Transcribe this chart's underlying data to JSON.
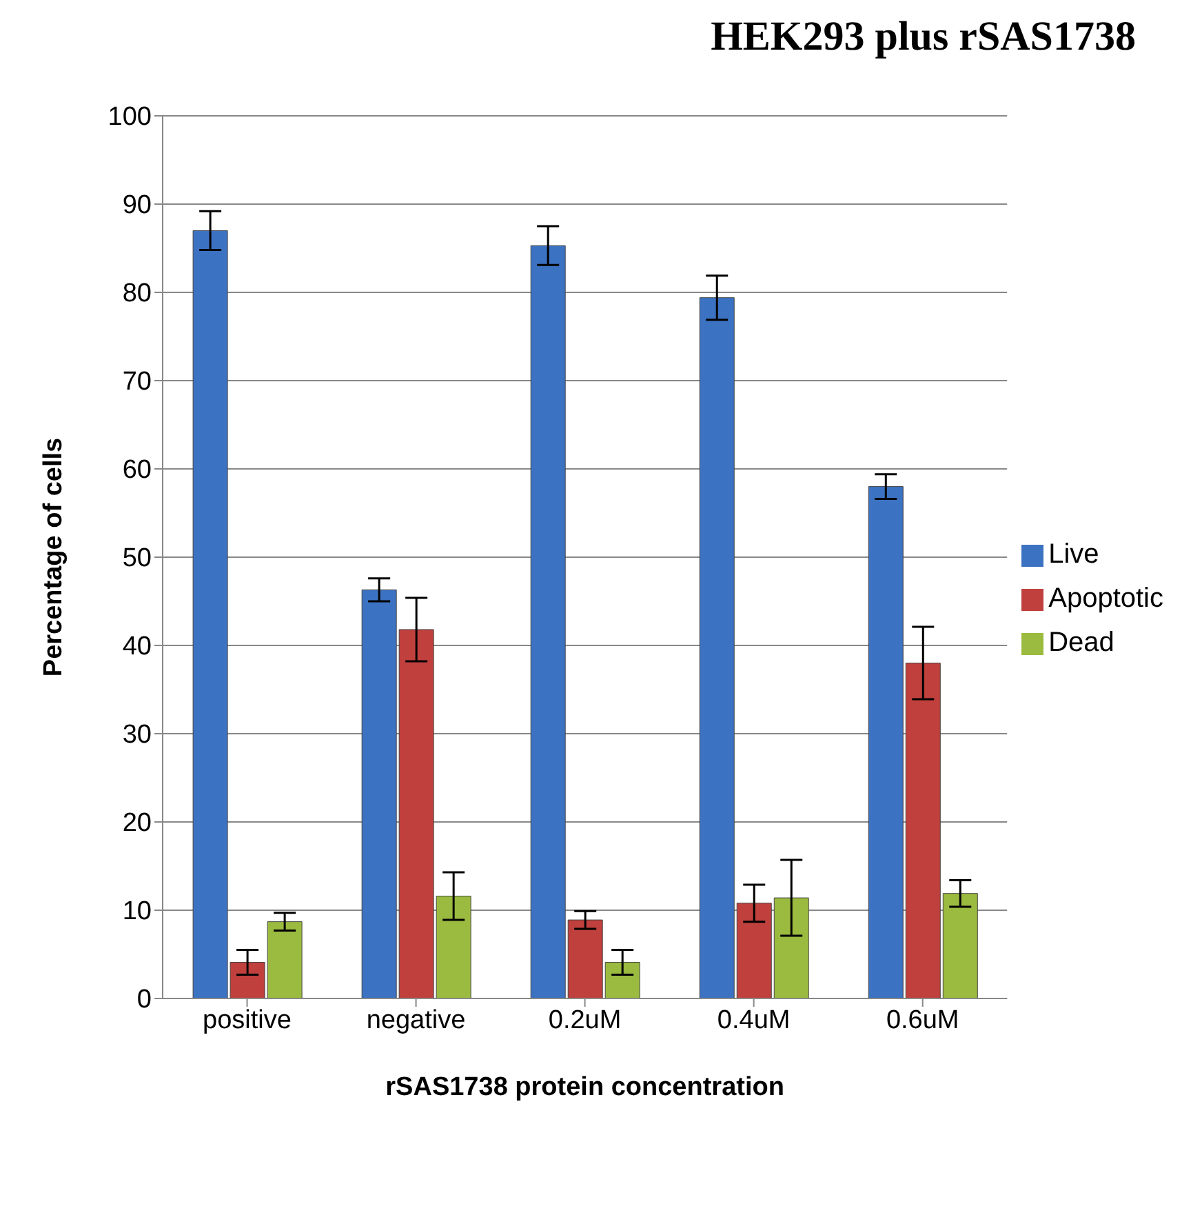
{
  "chart_data": {
    "type": "bar",
    "title": "HEK293 plus rSAS1738",
    "xlabel": "rSAS1738 protein concentration",
    "ylabel": "Percentage of cells",
    "categories": [
      "positive",
      "negative",
      "0.2uM",
      "0.4uM",
      "0.6uM"
    ],
    "series": [
      {
        "name": "Live",
        "color": "#3c72c2",
        "values": [
          87.0,
          46.3,
          85.3,
          79.4,
          58.0
        ],
        "errors": [
          2.2,
          1.3,
          2.2,
          2.5,
          1.4
        ]
      },
      {
        "name": "Apoptotic",
        "color": "#c0403d",
        "values": [
          4.1,
          41.8,
          8.9,
          10.8,
          38.0
        ],
        "errors": [
          1.4,
          3.6,
          1.0,
          2.1,
          4.1
        ]
      },
      {
        "name": "Dead",
        "color": "#9bbb40",
        "values": [
          8.7,
          11.6,
          4.1,
          11.4,
          11.9
        ],
        "errors": [
          1.0,
          2.7,
          1.4,
          4.3,
          1.5
        ]
      }
    ],
    "ylim": [
      0,
      100
    ],
    "yticks": [
      0,
      10,
      20,
      30,
      40,
      50,
      60,
      70,
      80,
      90,
      100
    ],
    "grid": "y",
    "legend": "right"
  }
}
